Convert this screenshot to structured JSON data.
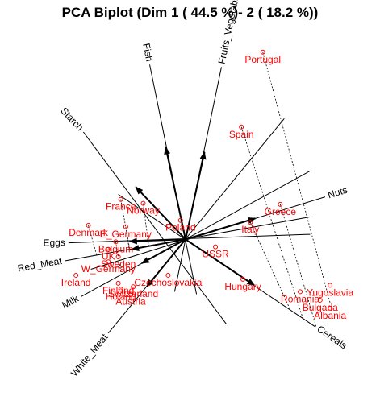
{
  "chart_data": {
    "type": "scatter",
    "title": "PCA Biplot (Dim 1 ( 44.5 %)- 2 ( 18.2 %))",
    "xlabel": "",
    "ylabel": "",
    "xlim": [
      -3.4,
      3.4
    ],
    "ylim": [
      -3.35,
      4.15
    ],
    "grid": false,
    "origin": [
      0,
      0
    ],
    "colors": {
      "points": "#ff0000",
      "arrows": "#000000",
      "projections": "#000000"
    },
    "series": [
      {
        "points": [
          {
            "label": "Portugal",
            "x": 1.55,
            "y": 3.75
          },
          {
            "label": "Spain",
            "x": 1.12,
            "y": 2.25
          },
          {
            "label": "Greece",
            "x": 1.9,
            "y": 0.7
          },
          {
            "label": "Italy",
            "x": 1.3,
            "y": 0.34
          },
          {
            "label": "USSR",
            "x": 0.6,
            "y": -0.15
          },
          {
            "label": "Hungary",
            "x": 1.15,
            "y": -0.8
          },
          {
            "label": "Romania",
            "x": 2.3,
            "y": -1.05
          },
          {
            "label": "Yugoslavia",
            "x": 2.9,
            "y": -0.92
          },
          {
            "label": "Bulgaria",
            "x": 2.7,
            "y": -1.22
          },
          {
            "label": "Czechoslovakia",
            "x": -0.35,
            "y": -0.72
          },
          {
            "label": "Albania",
            "x": 2.9,
            "y": -1.38
          },
          {
            "label": "Poland",
            "x": -0.1,
            "y": 0.38
          },
          {
            "label": "Norway",
            "x": -0.85,
            "y": 0.72
          },
          {
            "label": "France",
            "x": -1.3,
            "y": 0.8
          },
          {
            "label": "E_Germany",
            "x": -1.2,
            "y": 0.25
          },
          {
            "label": "Denmark",
            "x": -1.95,
            "y": 0.28
          },
          {
            "label": "Belgium",
            "x": -1.4,
            "y": -0.05
          },
          {
            "label": "UK",
            "x": -1.55,
            "y": -0.2
          },
          {
            "label": "Sweden",
            "x": -1.35,
            "y": -0.35
          },
          {
            "label": "W_Germany",
            "x": -1.55,
            "y": -0.45
          },
          {
            "label": "Ireland",
            "x": -2.2,
            "y": -0.72
          },
          {
            "label": "Finland",
            "x": -1.35,
            "y": -0.88
          },
          {
            "label": "Switzerland",
            "x": -1.05,
            "y": -0.95
          },
          {
            "label": "Holand",
            "x": -1.3,
            "y": -1.0
          },
          {
            "label": "Austria",
            "x": -1.1,
            "y": -1.1
          }
        ]
      }
    ],
    "variables": [
      {
        "label": "Fish",
        "arrow": [
          -0.4,
          1.85
        ],
        "axis_end": [
          -0.72,
          3.5
        ],
        "axis_start": [
          0.22,
          -1.1
        ]
      },
      {
        "label": "Fruits_Vegetables",
        "arrow": [
          0.38,
          1.75
        ],
        "axis_end": [
          0.72,
          3.45
        ],
        "axis_start": [
          -0.22,
          -1.05
        ]
      },
      {
        "label": "Starch",
        "arrow": [
          -1.0,
          1.05
        ],
        "axis_end": [
          -2.05,
          2.15
        ],
        "axis_start": [
          0.82,
          -1.7
        ]
      },
      {
        "label": "Nuts",
        "arrow": [
          1.4,
          0.42
        ],
        "axis_end": [
          2.8,
          0.85
        ],
        "axis_start": [
          -1.9,
          -0.6
        ]
      },
      {
        "label": "Eggs",
        "arrow": [
          -1.12,
          -0.04
        ],
        "axis_end": [
          -2.35,
          -0.07
        ],
        "axis_start": [
          2.5,
          0.1
        ]
      },
      {
        "label": "Red_Meat",
        "arrow": [
          -1.08,
          -0.2
        ],
        "axis_end": [
          -2.42,
          -0.43
        ],
        "axis_start": [
          2.5,
          0.45
        ]
      },
      {
        "label": "Milk",
        "arrow": [
          -0.88,
          -0.48
        ],
        "axis_end": [
          -2.1,
          -1.15
        ],
        "axis_start": [
          2.5,
          1.37
        ]
      },
      {
        "label": "White_Meat",
        "arrow": [
          -0.78,
          -0.95
        ],
        "axis_end": [
          -1.55,
          -1.88
        ],
        "axis_start": [
          1.98,
          2.42
        ]
      },
      {
        "label": "Cereals",
        "arrow": [
          1.38,
          -0.92
        ],
        "axis_end": [
          2.6,
          -1.75
        ],
        "axis_start": [
          -1.35,
          0.9
        ]
      }
    ],
    "projections": [
      {
        "label": "Portugal",
        "foot": [
          2.9,
          -1.27
        ]
      },
      {
        "label": "Spain",
        "foot": [
          2.35,
          -1.57
        ]
      },
      {
        "label": "Greece",
        "foot": [
          2.62,
          -1.75
        ]
      },
      {
        "label": "Italy",
        "foot": [
          2.1,
          -1.41
        ]
      },
      {
        "label": "Poland",
        "foot": [
          -0.01,
          0.01
        ]
      },
      {
        "label": "Norway",
        "foot": [
          -0.74,
          -0.13
        ]
      },
      {
        "label": "France",
        "foot": [
          -1.12,
          -0.2
        ]
      },
      {
        "label": "E_Germany",
        "foot": [
          -1.13,
          -0.2
        ]
      },
      {
        "label": "Denmark",
        "foot": [
          -1.78,
          -0.33
        ]
      },
      {
        "label": "Belgium",
        "foot": [
          -1.29,
          -0.71
        ]
      }
    ]
  }
}
